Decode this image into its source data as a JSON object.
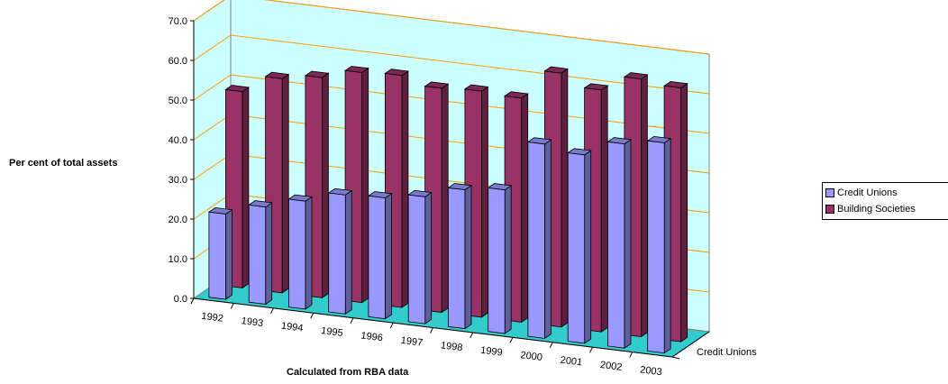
{
  "chart_data": {
    "type": "bar",
    "categories": [
      "1992",
      "1993",
      "1994",
      "1995",
      "1996",
      "1997",
      "1998",
      "1999",
      "2000",
      "2001",
      "2002",
      "2003"
    ],
    "series": [
      {
        "name": "Credit Unions",
        "values": [
          21.5,
          24.5,
          27.2,
          30.0,
          30.5,
          32.0,
          35.0,
          36.2,
          49.0,
          47.5,
          51.5,
          53.0
        ],
        "color": "#9999ff"
      },
      {
        "name": "Building Societies",
        "values": [
          49.5,
          54.0,
          55.5,
          58.0,
          58.5,
          56.5,
          57.0,
          56.5,
          64.0,
          61.0,
          65.0,
          64.0
        ],
        "color": "#993366"
      }
    ],
    "ylim": [
      0,
      70
    ],
    "yticks": [
      "0.0",
      "10.0",
      "20.0",
      "30.0",
      "40.0",
      "50.0",
      "60.0",
      "70.0"
    ],
    "ylabel": "Per cent of total assets",
    "xlabel": "Calculated from RBA data",
    "depth_label": "Credit Unions",
    "grid": true,
    "legend_position": "right",
    "wall_color": "#ccffff",
    "floor_color": "#33cccc",
    "gridline_color": "#ff9900"
  }
}
